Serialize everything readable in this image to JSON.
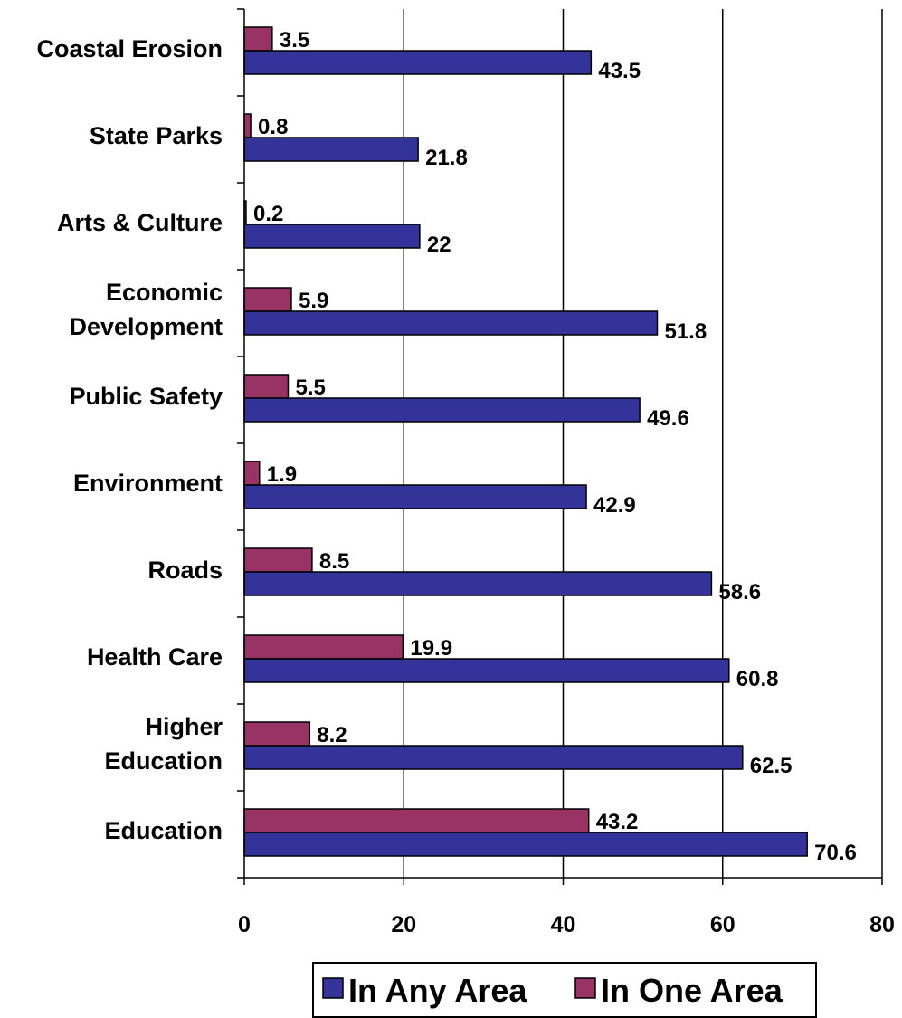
{
  "chart_data": {
    "type": "bar",
    "orientation": "horizontal",
    "categories": [
      [
        "Coastal Erosion"
      ],
      [
        "State Parks"
      ],
      [
        "Arts & Culture"
      ],
      [
        "Economic",
        "Development"
      ],
      [
        "Public Safety"
      ],
      [
        "Environment"
      ],
      [
        "Roads"
      ],
      [
        "Health Care"
      ],
      [
        "Higher",
        "Education"
      ],
      [
        "Education"
      ]
    ],
    "series": [
      {
        "name": "In Any Area",
        "color": "#333399",
        "values": [
          43.5,
          21.8,
          22,
          51.8,
          49.6,
          42.9,
          58.6,
          60.8,
          62.5,
          70.6
        ],
        "labels": [
          "43.5",
          "21.8",
          "22",
          "51.8",
          "49.6",
          "42.9",
          "58.6",
          "60.8",
          "62.5",
          "70.6"
        ]
      },
      {
        "name": "In One Area",
        "color": "#993366",
        "values": [
          3.5,
          0.8,
          0.2,
          5.9,
          5.5,
          1.9,
          8.5,
          19.9,
          8.2,
          43.2
        ],
        "labels": [
          "3.5",
          "0.8",
          "0.2",
          "5.9",
          "5.5",
          "1.9",
          "8.5",
          "19.9",
          "8.2",
          "43.2"
        ]
      }
    ],
    "xlim": [
      0,
      80
    ],
    "xticks": [
      "0",
      "20",
      "40",
      "60",
      "80"
    ],
    "grid": true,
    "legend_position": "bottom"
  }
}
